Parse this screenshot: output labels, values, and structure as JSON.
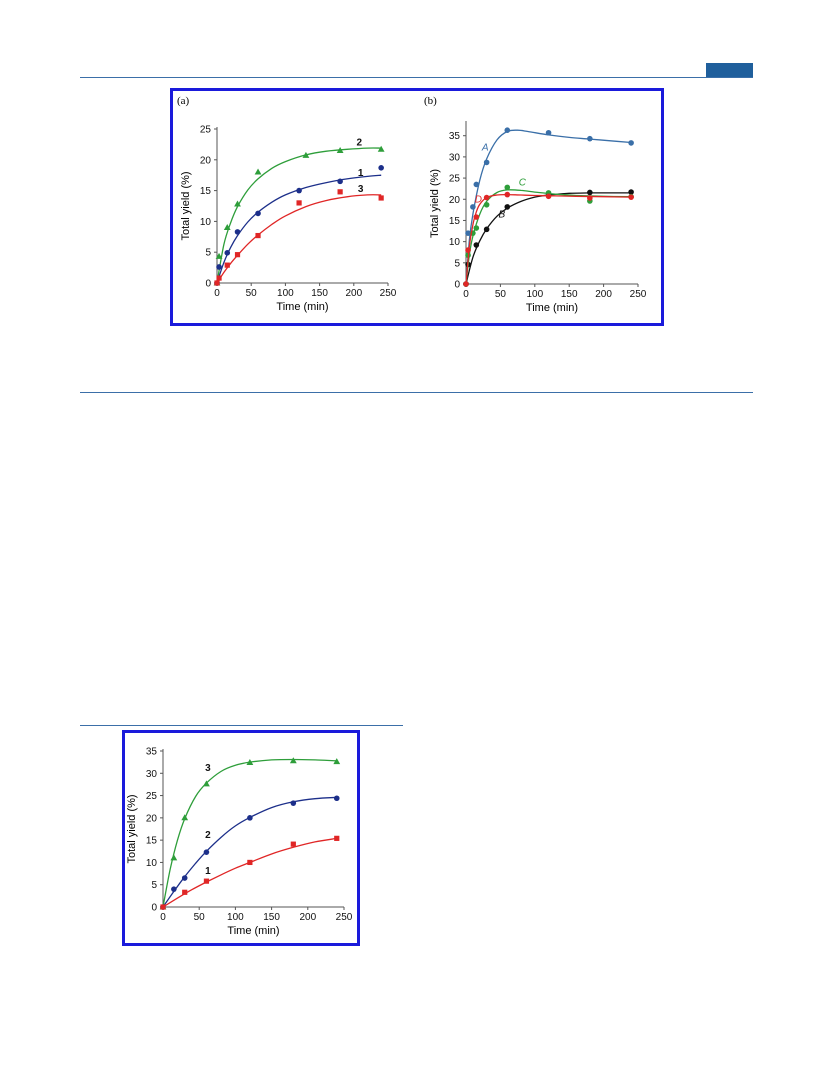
{
  "page": {
    "header_rule_color": "#3b6fa8",
    "tab_color": "#1f5f9c",
    "frame_color": "#1a1adb"
  },
  "chart_data": [
    {
      "panel": "(a)",
      "type": "scatter",
      "xlabel": "Time (min)",
      "ylabel": "Total yield (%)",
      "xlim": [
        0,
        250
      ],
      "ylim": [
        0,
        25
      ],
      "xticks": [
        0,
        50,
        100,
        150,
        200,
        250
      ],
      "yticks": [
        0,
        5,
        10,
        15,
        20,
        25
      ],
      "grid": false,
      "series": [
        {
          "name": "2",
          "marker": "triangle",
          "color": "#2e9e3a",
          "x": [
            0,
            3,
            15,
            30,
            60,
            130,
            180,
            240
          ],
          "y": [
            0,
            4.3,
            9,
            12.8,
            18,
            20.7,
            21.5,
            21.7
          ],
          "fit_x": [
            0,
            10,
            20,
            30,
            45,
            60,
            80,
            100,
            130,
            160,
            190,
            220,
            240
          ],
          "fit_y": [
            0,
            6.2,
            9.8,
            12.4,
            15.1,
            16.9,
            18.6,
            19.7,
            20.8,
            21.4,
            21.7,
            21.9,
            21.9
          ]
        },
        {
          "name": "1",
          "marker": "circle",
          "color": "#1c2f8a",
          "x": [
            0,
            3,
            15,
            30,
            60,
            120,
            180,
            240
          ],
          "y": [
            0,
            2.6,
            4.9,
            8.3,
            11.3,
            15,
            16.5,
            18.7
          ],
          "fit_x": [
            0,
            10,
            20,
            30,
            45,
            60,
            80,
            100,
            130,
            160,
            190,
            220,
            240
          ],
          "fit_y": [
            0,
            3.3,
            5.8,
            7.7,
            9.9,
            11.5,
            13.1,
            14.3,
            15.5,
            16.3,
            16.9,
            17.3,
            17.5
          ]
        },
        {
          "name": "3",
          "marker": "square",
          "color": "#e02626",
          "x": [
            0,
            3,
            15,
            30,
            60,
            120,
            180,
            240
          ],
          "y": [
            0,
            0.8,
            2.9,
            4.6,
            7.7,
            13,
            14.8,
            13.8
          ],
          "fit_x": [
            0,
            10,
            20,
            30,
            45,
            60,
            80,
            100,
            130,
            160,
            190,
            220,
            240
          ],
          "fit_y": [
            0,
            1.7,
            3.2,
            4.5,
            6.3,
            7.8,
            9.5,
            10.9,
            12.4,
            13.4,
            14.0,
            14.3,
            14.3
          ]
        }
      ],
      "labels": [
        {
          "text": "2",
          "x": 208,
          "y": 22.3
        },
        {
          "text": "1",
          "x": 210,
          "y": 17.4
        },
        {
          "text": "3",
          "x": 210,
          "y": 14.8
        }
      ]
    },
    {
      "panel": "(b)",
      "type": "scatter",
      "xlabel": "Time (min)",
      "ylabel": "Total yield (%)",
      "xlim": [
        0,
        250
      ],
      "ylim": [
        0,
        38
      ],
      "xticks": [
        0,
        50,
        100,
        150,
        200,
        250
      ],
      "yticks": [
        0,
        5,
        10,
        15,
        20,
        25,
        30,
        35
      ],
      "grid": false,
      "series": [
        {
          "name": "A",
          "marker": "circle",
          "color": "#3a6fa8",
          "x": [
            0,
            3,
            10,
            15,
            30,
            60,
            120,
            180,
            240
          ],
          "y": [
            0,
            12,
            18.2,
            23.5,
            28.7,
            36.3,
            35.7,
            34.3,
            33.3
          ],
          "fit_x": [
            0,
            5,
            10,
            20,
            30,
            45,
            60,
            75,
            90,
            120,
            150,
            180,
            210,
            240
          ],
          "fit_y": [
            0,
            10.5,
            16.5,
            24.5,
            29.5,
            34,
            36,
            36.3,
            36,
            35.2,
            34.6,
            34.2,
            33.8,
            33.4
          ]
        },
        {
          "name": "B",
          "marker": "circle",
          "color": "#111111",
          "x": [
            0,
            3,
            15,
            30,
            60,
            120,
            180,
            240
          ],
          "y": [
            0,
            4.6,
            9.2,
            12.9,
            18.2,
            21,
            21.6,
            21.7
          ],
          "fit_x": [
            0,
            10,
            20,
            30,
            45,
            60,
            80,
            100,
            120,
            150,
            180,
            210,
            240
          ],
          "fit_y": [
            0,
            6.3,
            10.2,
            13,
            16,
            17.9,
            19.5,
            20.5,
            21,
            21.4,
            21.5,
            21.5,
            21.5
          ]
        },
        {
          "name": "C",
          "marker": "circle",
          "color": "#2e9e3a",
          "x": [
            0,
            3,
            10,
            15,
            30,
            60,
            120,
            180,
            240
          ],
          "y": [
            0,
            6.8,
            12,
            13.2,
            18.7,
            22.8,
            21.5,
            19.6,
            20.6
          ],
          "fit_x": [
            0,
            5,
            10,
            20,
            30,
            45,
            60,
            80,
            100,
            130,
            160,
            200,
            240
          ],
          "fit_y": [
            0,
            7,
            11.3,
            16.5,
            19.5,
            21.6,
            22.2,
            22.1,
            21.7,
            21.2,
            20.9,
            20.7,
            20.6
          ]
        },
        {
          "name": "D",
          "marker": "circle",
          "color": "#e02626",
          "x": [
            0,
            3,
            15,
            30,
            60,
            120,
            180,
            240
          ],
          "y": [
            0,
            8,
            15.8,
            20.4,
            21.1,
            20.7,
            20.3,
            20.5
          ],
          "fit_x": [
            0,
            5,
            10,
            15,
            20,
            30,
            45,
            60,
            80,
            100,
            130,
            160,
            200,
            240
          ],
          "fit_y": [
            0,
            9,
            14,
            17,
            18.8,
            20.4,
            21,
            21.1,
            21,
            20.9,
            20.8,
            20.7,
            20.6,
            20.5
          ]
        }
      ],
      "labels": [
        {
          "text": "A",
          "x": 28,
          "y": 31.5
        },
        {
          "text": "C",
          "x": 82,
          "y": 23.3
        },
        {
          "text": "D",
          "x": 18,
          "y": 19.2
        },
        {
          "text": "B",
          "x": 52,
          "y": 15.7
        }
      ]
    },
    {
      "panel": "",
      "type": "scatter",
      "xlabel": "Time (min)",
      "ylabel": "Total yield (%)",
      "xlim": [
        0,
        250
      ],
      "ylim": [
        0,
        35
      ],
      "xticks": [
        0,
        50,
        100,
        150,
        200,
        250
      ],
      "yticks": [
        0,
        5,
        10,
        15,
        20,
        25,
        30,
        35
      ],
      "grid": false,
      "series": [
        {
          "name": "3",
          "marker": "triangle",
          "color": "#2e9e3a",
          "x": [
            0,
            15,
            30,
            60,
            120,
            180,
            240
          ],
          "y": [
            0,
            11,
            20,
            27.6,
            32.4,
            32.8,
            32.6
          ],
          "fit_x": [
            0,
            10,
            20,
            30,
            45,
            60,
            80,
            100,
            120,
            150,
            180,
            210,
            240
          ],
          "fit_y": [
            0,
            8.5,
            15,
            19.8,
            24.8,
            27.8,
            30.4,
            31.8,
            32.5,
            33,
            33.1,
            33,
            32.8
          ]
        },
        {
          "name": "2",
          "marker": "circle",
          "color": "#1c2f8a",
          "x": [
            0,
            15,
            30,
            60,
            120,
            180,
            240
          ],
          "y": [
            0,
            4,
            6.5,
            12.3,
            20,
            23.3,
            24.4
          ],
          "fit_x": [
            0,
            15,
            30,
            45,
            60,
            80,
            100,
            120,
            150,
            180,
            210,
            240
          ],
          "fit_y": [
            0,
            3.5,
            6.8,
            9.8,
            12.5,
            15.6,
            18.2,
            20.1,
            22.3,
            23.6,
            24.3,
            24.6
          ]
        },
        {
          "name": "1",
          "marker": "square",
          "color": "#e02626",
          "x": [
            0,
            30,
            60,
            120,
            180,
            240
          ],
          "y": [
            0,
            3.3,
            5.8,
            10,
            14.1,
            15.4
          ],
          "fit_x": [
            0,
            20,
            40,
            60,
            80,
            100,
            120,
            150,
            180,
            210,
            240
          ],
          "fit_y": [
            0,
            2,
            3.9,
            5.6,
            7.2,
            8.7,
            10,
            11.9,
            13.4,
            14.6,
            15.4
          ]
        }
      ],
      "labels": [
        {
          "text": "3",
          "x": 62,
          "y": 30.5
        },
        {
          "text": "2",
          "x": 62,
          "y": 15.5
        },
        {
          "text": "1",
          "x": 62,
          "y": 7.4
        }
      ]
    }
  ]
}
